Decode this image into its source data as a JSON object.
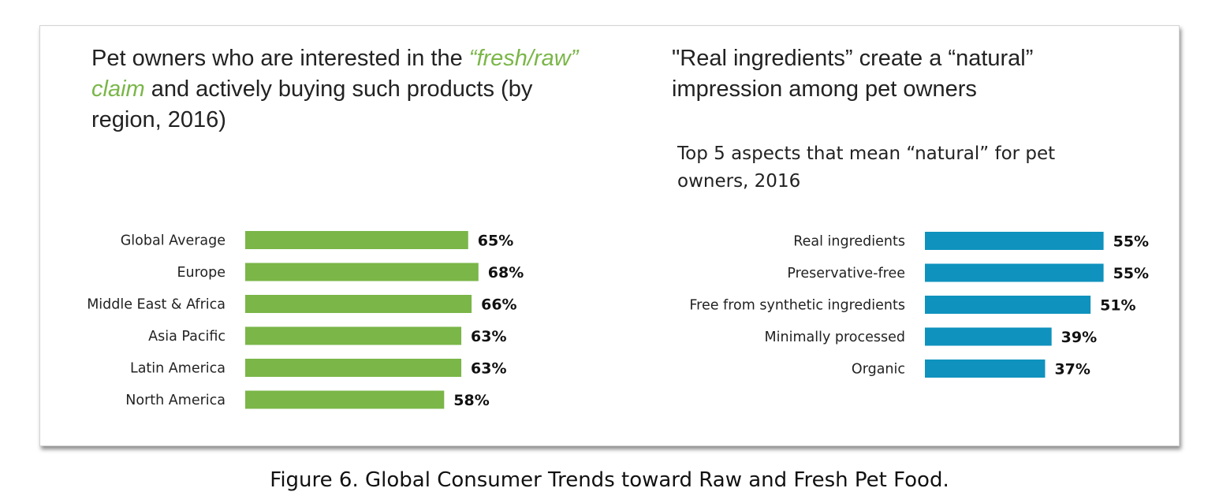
{
  "colors": {
    "left_bar": "#7ab648",
    "right_bar": "#0f92bd",
    "accent_text": "#7ab648"
  },
  "left_panel": {
    "heading_before": "Pet owners who are interested in the ",
    "heading_accent": "“fresh/raw” claim",
    "heading_after": " and actively buying such products (by region, 2016)"
  },
  "right_panel": {
    "heading": "\"Real ingredients” create a “natural” impression among pet owners",
    "subtitle": "Top 5 aspects that mean “natural” for pet owners, 2016"
  },
  "chart_data": [
    {
      "type": "bar",
      "orientation": "horizontal",
      "categories": [
        "Global Average",
        "Europe",
        "Middle East & Africa",
        "Asia Pacific",
        "Latin America",
        "North America"
      ],
      "values": [
        65,
        68,
        66,
        63,
        63,
        58
      ],
      "value_labels": [
        "65%",
        "68%",
        "66%",
        "63%",
        "63%",
        "58%"
      ],
      "unit": "%",
      "grid": false,
      "legend": "none"
    },
    {
      "type": "bar",
      "orientation": "horizontal",
      "categories": [
        "Real ingredients",
        "Preservative-free",
        "Free from synthetic ingredients",
        "Minimally processed",
        "Organic"
      ],
      "values": [
        55,
        55,
        51,
        39,
        37
      ],
      "value_labels": [
        "55%",
        "55%",
        "51%",
        "39%",
        "37%"
      ],
      "unit": "%",
      "grid": false,
      "legend": "none"
    }
  ],
  "caption": "Figure 6. Global Consumer Trends toward Raw and Fresh Pet Food."
}
